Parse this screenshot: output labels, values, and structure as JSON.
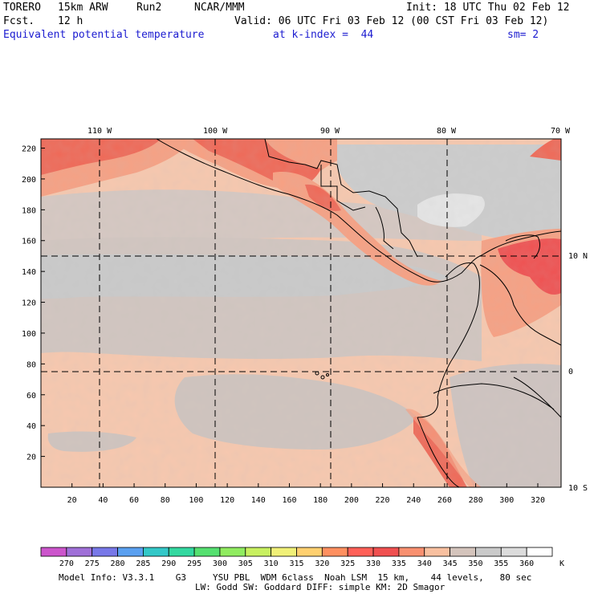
{
  "header": {
    "model": "TORERO",
    "resolution": "15km ARW",
    "run": "Run2",
    "org": "NCAR/MMM",
    "init": "Init: 18 UTC Thu 02 Feb 12",
    "fcst_label": "Fcst.",
    "fcst_hours": "12 h",
    "valid": "Valid: 06 UTC Fri 03 Feb 12 (00 CST Fri 03 Feb 12)",
    "field": "Equivalent potential temperature",
    "level": "at k-index =  44",
    "smoothing": "sm= 2"
  },
  "map": {
    "x_ticks": [
      "20",
      "40",
      "60",
      "80",
      "100",
      "120",
      "140",
      "160",
      "180",
      "200",
      "220",
      "240",
      "260",
      "280",
      "300",
      "320"
    ],
    "y_ticks": [
      "220",
      "200",
      "180",
      "160",
      "140",
      "120",
      "100",
      "80",
      "60",
      "40",
      "20"
    ],
    "lon_labels": [
      "110 W",
      "100 W",
      "90 W",
      "80 W",
      "70 W"
    ],
    "lat_labels": [
      "10 N",
      "0",
      "10 S"
    ]
  },
  "colorbar": {
    "unit": "K",
    "values": [
      "270",
      "275",
      "280",
      "285",
      "290",
      "295",
      "300",
      "305",
      "310",
      "315",
      "320",
      "325",
      "330",
      "335",
      "340",
      "345",
      "350",
      "355",
      "360"
    ],
    "colors": [
      "#cc55cc",
      "#a070d8",
      "#7878e8",
      "#5aa0f0",
      "#33c8c8",
      "#33d8a0",
      "#55e070",
      "#90ec60",
      "#c8f060",
      "#f0f078",
      "#ffd070",
      "#ff9060",
      "#ff6058",
      "#f05050",
      "#f89070",
      "#f8c0a0",
      "#d4c4bc",
      "#cacaca",
      "#dcdcdc",
      "#ffffff"
    ]
  },
  "footer": {
    "line1": "Model Info: V3.3.1    G3     YSU PBL  WDM 6class  Noah LSM  15 km,    44 levels,   80 sec",
    "line2": "LW: Godd SW: Goddard DIFF: simple KM: 2D Smagor"
  }
}
